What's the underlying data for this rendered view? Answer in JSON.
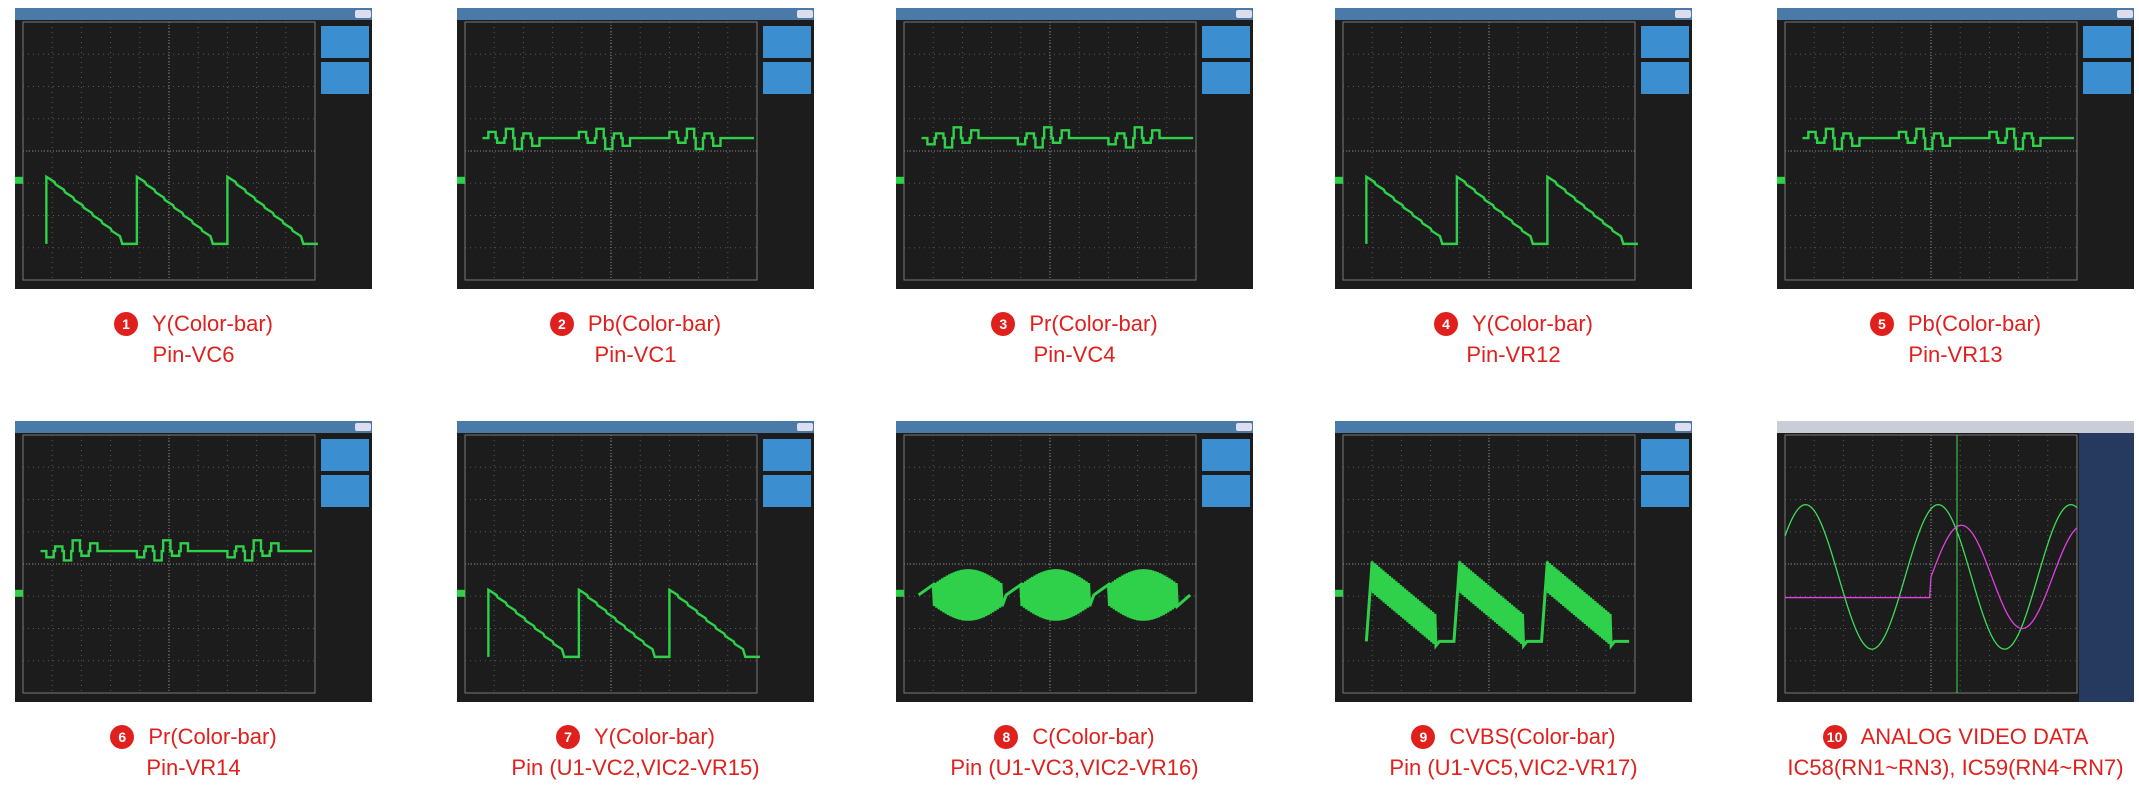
{
  "panels": [
    {
      "number": "1",
      "title": "Y(Color-bar)",
      "pin": "Pin-VC6"
    },
    {
      "number": "2",
      "title": "Pb(Color-bar)",
      "pin": "Pin-VC1"
    },
    {
      "number": "3",
      "title": "Pr(Color-bar)",
      "pin": "Pin-VC4"
    },
    {
      "number": "4",
      "title": "Y(Color-bar)",
      "pin": "Pin-VR12"
    },
    {
      "number": "5",
      "title": "Pb(Color-bar)",
      "pin": "Pin-VR13"
    },
    {
      "number": "6",
      "title": "Pr(Color-bar)",
      "pin": "Pin-VR14"
    },
    {
      "number": "7",
      "title": "Y(Color-bar)",
      "pin": "Pin (U1-VC2,VIC2-VR15)"
    },
    {
      "number": "8",
      "title": "C(Color-bar)",
      "pin": "Pin (U1-VC3,VIC2-VR16)"
    },
    {
      "number": "9",
      "title": "CVBS(Color-bar)",
      "pin": "Pin (U1-VC5,VIC2-VR17)"
    },
    {
      "number": "10",
      "title": "ANALOG VIDEO DATA",
      "pin": "IC58(RN1~RN3), IC59(RN4~RN7)"
    }
  ]
}
